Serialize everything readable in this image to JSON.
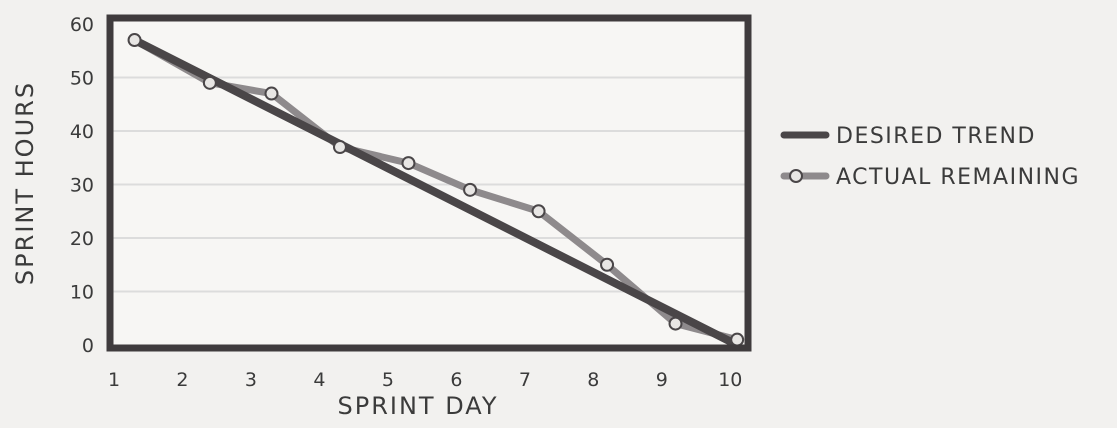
{
  "chart_data": {
    "type": "line",
    "xlabel": "SPRINT DAY",
    "ylabel": "SPRINT HOURS",
    "xlim": [
      1,
      10.2
    ],
    "ylim": [
      0,
      60
    ],
    "x_ticks": [
      1,
      2,
      3,
      4,
      5,
      6,
      7,
      8,
      9,
      10
    ],
    "y_ticks": [
      0,
      10,
      20,
      30,
      40,
      50,
      60
    ],
    "grid": "horizontal",
    "legend_position": "right",
    "series": [
      {
        "name": "DESIRED TREND",
        "style": "thick-line",
        "color": "#4a4648",
        "x": [
          1.3,
          10.1
        ],
        "y": [
          57,
          0
        ]
      },
      {
        "name": "ACTUAL REMAINING",
        "style": "line-markers",
        "color": "#8e8a8c",
        "x": [
          1.3,
          2.4,
          3.3,
          4.3,
          5.3,
          6.2,
          7.2,
          8.2,
          9.2,
          10.1
        ],
        "y": [
          57,
          49,
          47,
          37,
          34,
          29,
          25,
          15,
          4,
          1
        ]
      }
    ]
  }
}
